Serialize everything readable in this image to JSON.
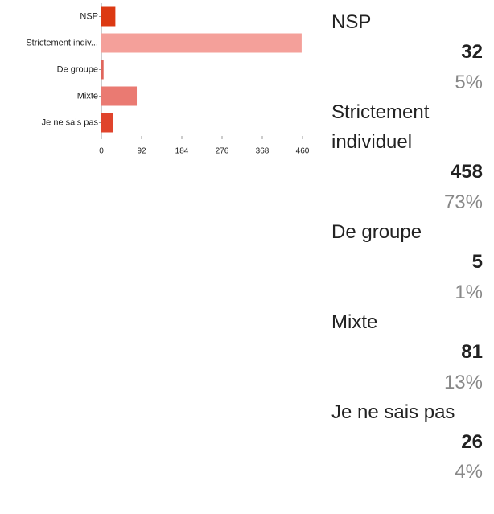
{
  "chart_data": {
    "type": "bar",
    "orientation": "horizontal",
    "categories": [
      "NSP",
      "Strictement indiv...",
      "De groupe",
      "Mixte",
      "Je ne sais pas"
    ],
    "values": [
      32,
      458,
      5,
      81,
      26
    ],
    "colors": [
      "#dc3912",
      "#f4a09a",
      "#e0665c",
      "#ea7a72",
      "#e0442c"
    ],
    "xlim": [
      0,
      460
    ],
    "xticks": [
      0,
      92,
      184,
      276,
      368,
      460
    ],
    "legend_labels": [
      "NSP",
      "Strictement individuel",
      "De groupe",
      "Mixte",
      "Je ne sais pas"
    ],
    "shares": [
      5,
      73,
      1,
      13,
      4
    ],
    "share_labels": [
      "5%",
      "73%",
      "1%",
      "13%",
      "4%"
    ]
  }
}
